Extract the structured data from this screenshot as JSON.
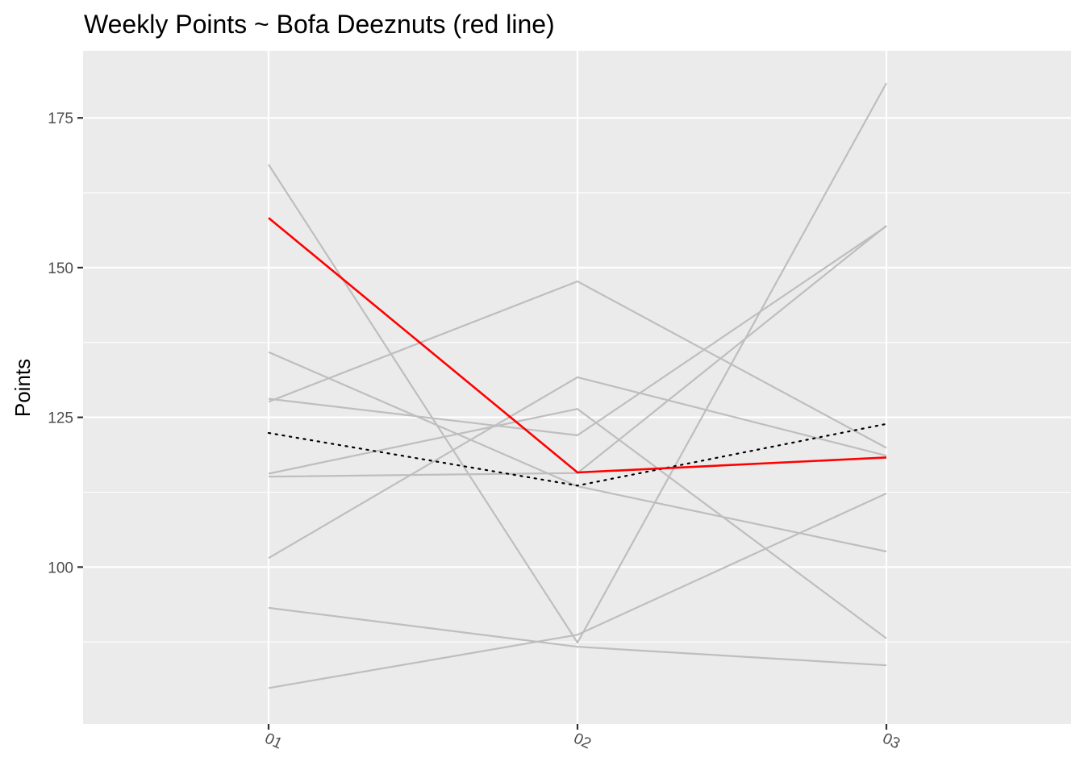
{
  "chart_data": {
    "type": "line",
    "title": "Weekly Points ~ Bofa Deeznuts (red line)",
    "xlabel": "",
    "ylabel": "Points",
    "categories": [
      "01",
      "02",
      "03"
    ],
    "ylim": [
      73.8,
      186.2
    ],
    "yticks": [
      100,
      125,
      150,
      175
    ],
    "grid": true,
    "panel_background": "#EBEBEB",
    "other_team_color": "#BEBEBE",
    "highlight_color": "#FF0000",
    "average_color": "#000000",
    "other_teams": [
      {
        "values": [
          167.2,
          87.4,
          180.8
        ]
      },
      {
        "values": [
          135.9,
          113.5,
          102.6
        ]
      },
      {
        "values": [
          128.1,
          122.0,
          156.9
        ]
      },
      {
        "values": [
          127.6,
          147.7,
          119.9
        ]
      },
      {
        "values": [
          115.6,
          126.4,
          88.1
        ]
      },
      {
        "values": [
          115.1,
          115.7,
          157.0
        ]
      },
      {
        "values": [
          101.5,
          131.7,
          118.6
        ]
      },
      {
        "values": [
          93.2,
          86.7,
          83.6
        ]
      },
      {
        "values": [
          79.8,
          88.7,
          112.3
        ]
      }
    ],
    "highlight": {
      "values": [
        158.3,
        115.8,
        118.3
      ]
    },
    "average": {
      "values": [
        122.4,
        113.6,
        123.9
      ]
    }
  }
}
